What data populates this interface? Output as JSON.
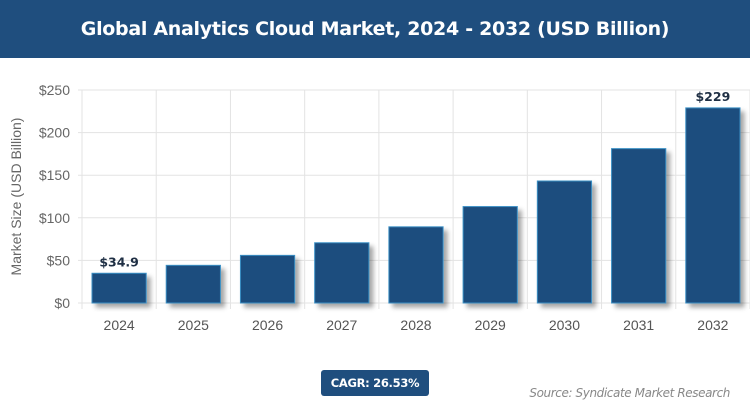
{
  "header": {
    "title": "Global Analytics Cloud Market, 2024 - 2032 (USD Billion)"
  },
  "chart_data": {
    "type": "bar",
    "title": "Global Analytics Cloud Market, 2024 - 2032 (USD Billion)",
    "categories": [
      "2024",
      "2025",
      "2026",
      "2027",
      "2028",
      "2029",
      "2030",
      "2031",
      "2032"
    ],
    "values": [
      34.9,
      44.2,
      55.9,
      70.7,
      89.4,
      113.2,
      143.2,
      181.2,
      229
    ],
    "data_labels": {
      "0": "$34.9",
      "8": "$229"
    },
    "xlabel": "",
    "ylabel": "Market Size (USD Billion)",
    "ylim": [
      0,
      250
    ],
    "yticks": [
      0,
      50,
      100,
      150,
      200,
      250
    ],
    "ytick_labels": [
      "$0",
      "$50",
      "$100",
      "$150",
      "$200",
      "$250"
    ],
    "grid": true,
    "bar_color": "#1f4e7e",
    "bar_edge_color": "#3a8fc4"
  },
  "footer": {
    "cagr": "CAGR: 26.53%",
    "source": "Source: Syndicate Market Research"
  }
}
